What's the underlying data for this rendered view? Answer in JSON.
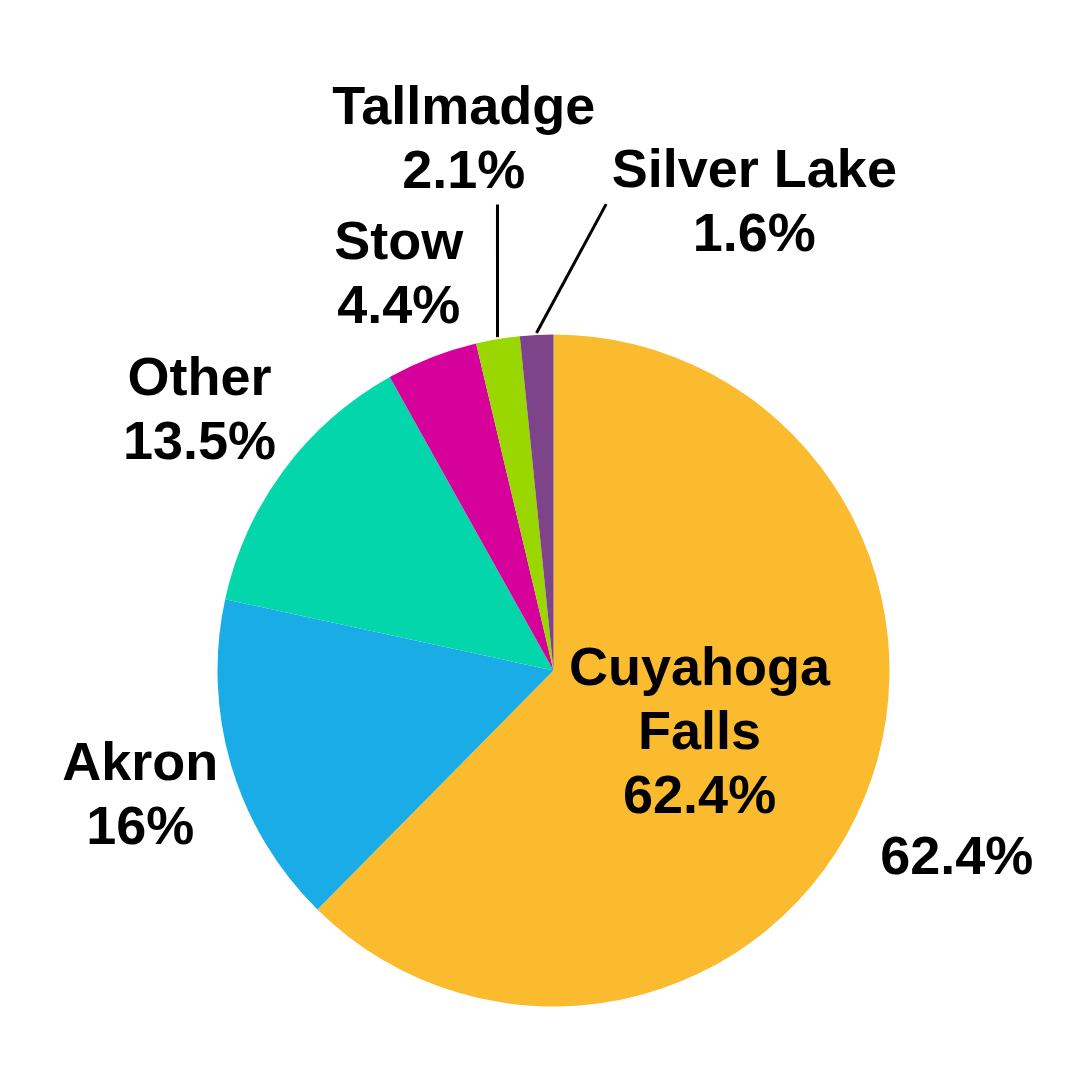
{
  "chart_data": {
    "type": "pie",
    "categories": [
      "Cuyahoga Falls",
      "Akron",
      "Other",
      "Stow",
      "Tallmadge",
      "Silver Lake"
    ],
    "values": [
      62.4,
      16,
      13.5,
      4.4,
      2.1,
      1.6
    ],
    "colors": [
      "#fbbb2f",
      "#1aace6",
      "#03d6ab",
      "#d6009a",
      "#9ad600",
      "#7d4489"
    ],
    "value_labels": [
      "62.4%",
      "16%",
      "13.5%",
      "4.4%",
      "2.1%",
      "1.6%"
    ],
    "annotations": [
      "62.4%"
    ]
  }
}
